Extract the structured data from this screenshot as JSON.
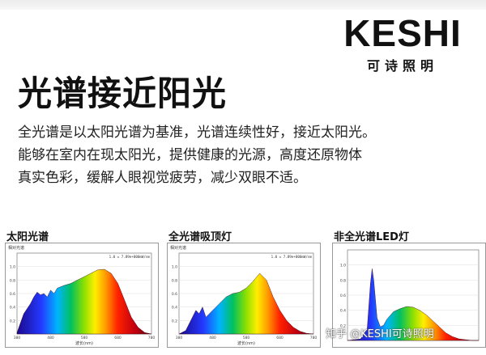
{
  "brand": {
    "name": "KESHI",
    "tagline": "可诗照明"
  },
  "title": "光谱接近阳光",
  "description": [
    "全光谱是以太阳光谱为基准，光谱连续性好，接近太阳光。",
    "能够在室内在现太阳光，提供健康的光源，高度还原物体",
    "真实色彩，缓解人眼视觉疲劳，减少双眼不适。"
  ],
  "panels": [
    {
      "title": "太阳光谱",
      "header": "相对光谱",
      "legend": "1.0 = 7.89e+000mW/nm",
      "xlabel": "波长(nm)",
      "xticks": [
        "380",
        "480",
        "580",
        "680",
        "780"
      ],
      "yticks": [
        "1.0",
        "0.8",
        "0.6",
        "0.4",
        "0.2"
      ]
    },
    {
      "title": "全光谱吸顶灯",
      "header": "相对光谱",
      "legend": "1.0 = 7.89e+000mW/nm",
      "xlabel": "波长(nm)",
      "xticks": [
        "380",
        "480",
        "580",
        "680",
        "780"
      ],
      "yticks": [
        "1.0",
        "0.8",
        "0.6",
        "0.4",
        "0.2"
      ]
    },
    {
      "title": "非全光谱LED灯",
      "header": "",
      "legend": "",
      "xlabel": "",
      "xticks": [],
      "yticks": [
        "1.0",
        "0.8",
        "0.6",
        "0.4",
        "0.2"
      ]
    }
  ],
  "watermark": "知乎 @KESHI可诗照明",
  "chart_data": [
    {
      "type": "area",
      "title": "太阳光谱",
      "xlabel": "波长(nm)",
      "x": [
        380,
        400,
        420,
        430,
        440,
        450,
        460,
        470,
        480,
        490,
        500,
        520,
        540,
        560,
        580,
        600,
        620,
        640,
        660,
        680,
        700,
        720,
        740,
        760,
        780
      ],
      "values": [
        0.02,
        0.3,
        0.45,
        0.55,
        0.62,
        0.58,
        0.6,
        0.55,
        0.65,
        0.6,
        0.68,
        0.72,
        0.75,
        0.8,
        0.85,
        0.9,
        0.95,
        0.96,
        0.9,
        0.75,
        0.5,
        0.25,
        0.1,
        0.02,
        0.0
      ],
      "xlim": [
        380,
        780
      ],
      "ylim": [
        0,
        1.2
      ]
    },
    {
      "type": "area",
      "title": "全光谱吸顶灯",
      "xlabel": "波长(nm)",
      "x": [
        380,
        400,
        420,
        430,
        440,
        450,
        460,
        470,
        480,
        490,
        500,
        520,
        540,
        560,
        580,
        600,
        620,
        640,
        660,
        680,
        700,
        720,
        740,
        760,
        780
      ],
      "values": [
        0.0,
        0.05,
        0.25,
        0.35,
        0.3,
        0.4,
        0.25,
        0.3,
        0.35,
        0.4,
        0.45,
        0.55,
        0.6,
        0.62,
        0.68,
        0.78,
        0.9,
        0.8,
        0.55,
        0.35,
        0.2,
        0.1,
        0.04,
        0.01,
        0.0
      ],
      "xlim": [
        380,
        780
      ],
      "ylim": [
        0,
        1.2
      ]
    },
    {
      "type": "area",
      "title": "非全光谱LED灯",
      "x": [
        380,
        420,
        440,
        450,
        455,
        460,
        470,
        480,
        490,
        500,
        520,
        540,
        560,
        580,
        600,
        620,
        640,
        660,
        680,
        700,
        720,
        740,
        760,
        780
      ],
      "values": [
        0.0,
        0.02,
        0.15,
        0.75,
        0.95,
        0.8,
        0.3,
        0.18,
        0.2,
        0.28,
        0.38,
        0.42,
        0.45,
        0.44,
        0.4,
        0.34,
        0.26,
        0.18,
        0.1,
        0.05,
        0.02,
        0.01,
        0.0,
        0.0
      ],
      "xlim": [
        380,
        780
      ],
      "ylim": [
        0,
        1.2
      ]
    }
  ]
}
